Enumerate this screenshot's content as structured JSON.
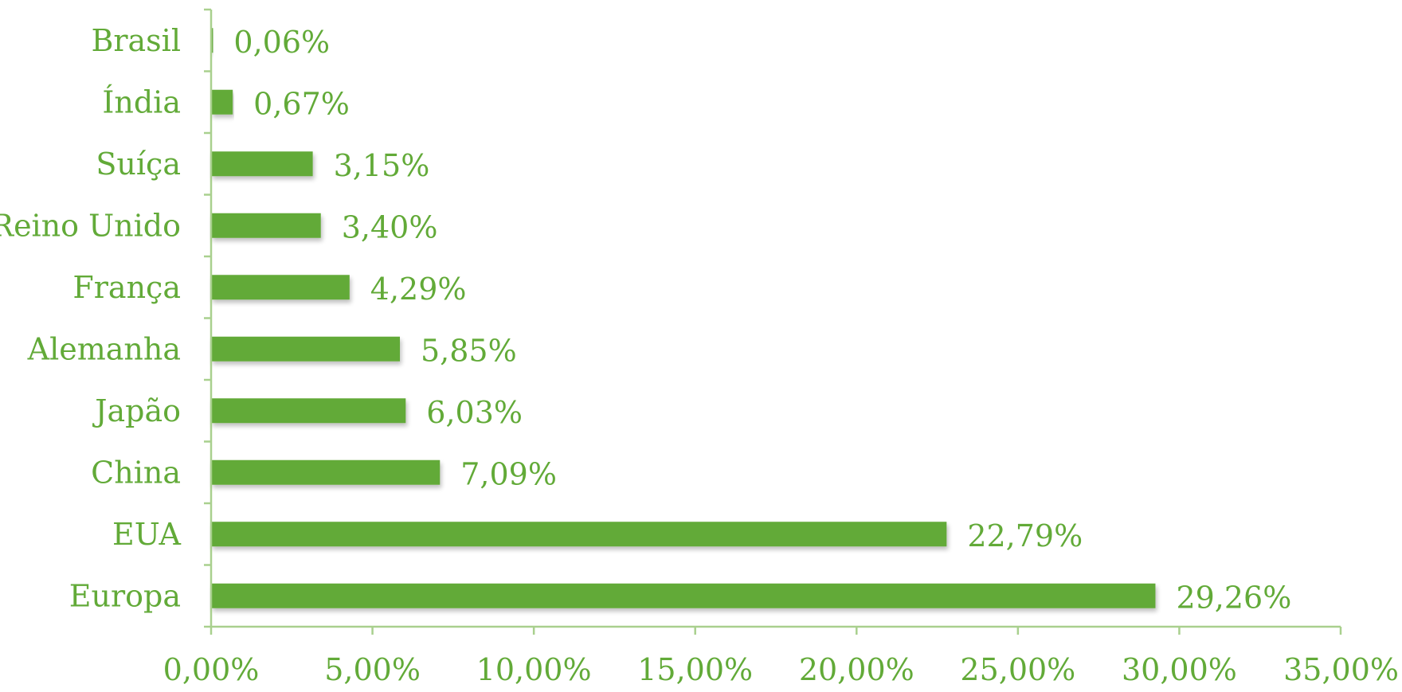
{
  "chart_data": {
    "type": "bar",
    "orientation": "horizontal",
    "categories": [
      "Brasil",
      "Índia",
      "Suíça",
      "Reino Unido",
      "França",
      "Alemanha",
      "Japão",
      "China",
      "EUA",
      "Europa"
    ],
    "values": [
      0.06,
      0.67,
      3.15,
      3.4,
      4.29,
      5.85,
      6.03,
      7.09,
      22.79,
      29.26
    ],
    "value_labels": [
      "0,06%",
      "0,67%",
      "3,15%",
      "3,40%",
      "4,29%",
      "5,85%",
      "6,03%",
      "7,09%",
      "22,79%",
      "29,26%"
    ],
    "xlim": [
      0,
      35
    ],
    "ticks": [
      0,
      5,
      10,
      15,
      20,
      25,
      30,
      35
    ],
    "tick_labels": [
      "0,00%",
      "5,00%",
      "10,00%",
      "15,00%",
      "20,00%",
      "25,00%",
      "30,00%",
      "35,00%"
    ],
    "title": "",
    "xlabel": "",
    "ylabel": "",
    "grid": false,
    "legend": "none",
    "colors": {
      "bar": "#62AA38",
      "axis": "#A9D08E",
      "text": "#62AA38"
    }
  }
}
